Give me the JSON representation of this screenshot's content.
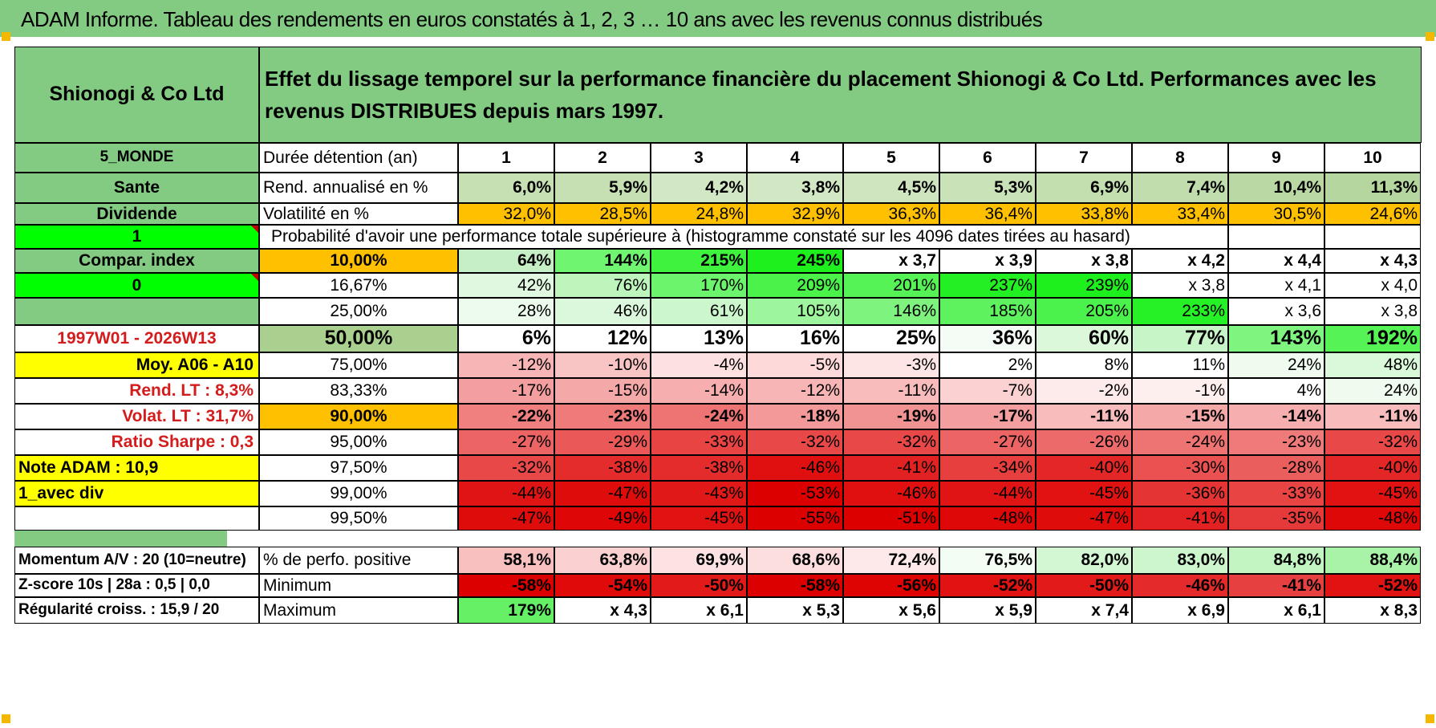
{
  "title": "ADAM Informe. Tableau des rendements en euros constatés à 1, 2, 3 … 10 ans avec les revenus connus distribués",
  "header": {
    "name": "Shionogi & Co Ltd",
    "description": "Effet du lissage temporel sur la performance financière du placement Shionogi & Co Ltd. Performances avec les revenus DISTRIBUES depuis mars 1997."
  },
  "colors": {
    "header_green": "#83cb83",
    "bright_green": "#00ff00",
    "orange": "#ffc000",
    "yellow": "#ffff00",
    "red_text": "#d41c1c"
  },
  "sidebar": [
    {
      "text": "5_MONDE",
      "bg": "#83cb83",
      "align": "c",
      "color": "#000000",
      "bold": true,
      "size": 19
    },
    {
      "text": "Sante",
      "bg": "#83cb83",
      "align": "c",
      "color": "#000000",
      "bold": true
    },
    {
      "text": "Dividende",
      "bg": "#83cb83",
      "align": "c",
      "color": "#000000",
      "bold": true
    },
    {
      "text": "1",
      "bg": "#00ff00",
      "align": "c",
      "color": "#000000",
      "bold": true,
      "tri": true
    },
    {
      "text": "Compar. index",
      "bg": "#83cb83",
      "align": "c",
      "color": "#000000",
      "bold": true
    },
    {
      "text": "0",
      "bg": "#00ff00",
      "align": "c",
      "color": "#000000",
      "bold": true,
      "tri": true
    },
    {
      "text": "",
      "bg": "#83cb83",
      "align": "c",
      "color": "#000000",
      "bold": true
    },
    {
      "text": "1997W01 - 2026W13",
      "bg": "#ffffff",
      "align": "c",
      "color": "#d41c1c",
      "bold": true
    },
    {
      "text": "Moy. A06 - A10",
      "bg": "#ffff00",
      "align": "r",
      "color": "#000000",
      "bold": true
    },
    {
      "text": "Rend. LT :   8,3%",
      "bg": "#ffffff",
      "align": "r",
      "color": "#d41c1c",
      "bold": true
    },
    {
      "text": "Volat. LT :   31,7%",
      "bg": "#ffffff",
      "align": "r",
      "color": "#d41c1c",
      "bold": true
    },
    {
      "text": "Ratio Sharpe :    0,3",
      "bg": "#ffffff",
      "align": "r",
      "color": "#d41c1c",
      "bold": true
    },
    {
      "text": "Note ADAM : 10,9",
      "bg": "#ffff00",
      "align": "l",
      "color": "#000000",
      "bold": true
    },
    {
      "text": "1_avec div",
      "bg": "#ffff00",
      "align": "l",
      "color": "#000000",
      "bold": true
    },
    {
      "text": "",
      "bg": "#ffffff",
      "align": "c",
      "color": "#000000",
      "bold": false
    }
  ],
  "label_rows": [
    {
      "text": "Durée détention (an)",
      "bg": "#ffffff"
    },
    {
      "text": "Rend. annualisé en %",
      "bg": "#ffffff"
    },
    {
      "text": "Volatilité en %",
      "bg": "#ffffff"
    }
  ],
  "years": [
    "1",
    "2",
    "3",
    "4",
    "5",
    "6",
    "7",
    "8",
    "9",
    "10"
  ],
  "annualized_return": [
    {
      "v": "6,0%",
      "bg": "#c6e0b4"
    },
    {
      "v": "5,9%",
      "bg": "#c6e0b4"
    },
    {
      "v": "4,2%",
      "bg": "#d2e7c4"
    },
    {
      "v": "3,8%",
      "bg": "#d2e7c4"
    },
    {
      "v": "4,5%",
      "bg": "#cfe5c0"
    },
    {
      "v": "5,3%",
      "bg": "#c9e2b8"
    },
    {
      "v": "6,9%",
      "bg": "#c3deaf"
    },
    {
      "v": "7,4%",
      "bg": "#c1ddad"
    },
    {
      "v": "10,4%",
      "bg": "#b9d8a3"
    },
    {
      "v": "11,3%",
      "bg": "#b5d69e"
    }
  ],
  "volatility": [
    {
      "v": "32,0%",
      "bg": "#ffc000"
    },
    {
      "v": "28,5%",
      "bg": "#ffc000"
    },
    {
      "v": "24,8%",
      "bg": "#ffc000"
    },
    {
      "v": "32,9%",
      "bg": "#ffc000"
    },
    {
      "v": "36,3%",
      "bg": "#ffc000"
    },
    {
      "v": "36,4%",
      "bg": "#ffc000"
    },
    {
      "v": "33,8%",
      "bg": "#ffc000"
    },
    {
      "v": "33,4%",
      "bg": "#ffc000"
    },
    {
      "v": "30,5%",
      "bg": "#ffc000"
    },
    {
      "v": "24,6%",
      "bg": "#ffc000"
    }
  ],
  "probability_title": "Probabilité d'avoir une performance totale supérieure à (histogramme constaté sur les 4096 dates tirées au hasard)",
  "probability_rows": [
    {
      "label": "10,00%",
      "label_bg": "#ffc000",
      "big": false,
      "bold": true,
      "cells": [
        {
          "v": "64%",
          "bg": "#c6efc6"
        },
        {
          "v": "144%",
          "bg": "#6ff56f"
        },
        {
          "v": "215%",
          "bg": "#3ef23e"
        },
        {
          "v": "245%",
          "bg": "#1ef01e"
        },
        {
          "v": "x 3,7",
          "bg": "#ffffff"
        },
        {
          "v": "x 3,9",
          "bg": "#ffffff"
        },
        {
          "v": "x 3,8",
          "bg": "#ffffff"
        },
        {
          "v": "x 4,2",
          "bg": "#ffffff"
        },
        {
          "v": "x 4,4",
          "bg": "#ffffff"
        },
        {
          "v": "x 4,3",
          "bg": "#ffffff"
        }
      ]
    },
    {
      "label": "16,67%",
      "label_bg": "#ffffff",
      "big": false,
      "bold": false,
      "cells": [
        {
          "v": "42%",
          "bg": "#e0f7e0"
        },
        {
          "v": "76%",
          "bg": "#bdf5bd"
        },
        {
          "v": "170%",
          "bg": "#6cf56c"
        },
        {
          "v": "209%",
          "bg": "#4af24a"
        },
        {
          "v": "201%",
          "bg": "#55f355"
        },
        {
          "v": "237%",
          "bg": "#22f022"
        },
        {
          "v": "239%",
          "bg": "#1ef01e"
        },
        {
          "v": "x 3,8",
          "bg": "#ffffff"
        },
        {
          "v": "x 4,1",
          "bg": "#ffffff"
        },
        {
          "v": "x 4,0",
          "bg": "#ffffff"
        }
      ]
    },
    {
      "label": "25,00%",
      "label_bg": "#ffffff",
      "big": false,
      "bold": false,
      "cells": [
        {
          "v": "28%",
          "bg": "#ecfbec"
        },
        {
          "v": "46%",
          "bg": "#dcf8dc"
        },
        {
          "v": "61%",
          "bg": "#ccf6cc"
        },
        {
          "v": "105%",
          "bg": "#9df59d"
        },
        {
          "v": "146%",
          "bg": "#7ef47e"
        },
        {
          "v": "185%",
          "bg": "#5ef25e"
        },
        {
          "v": "205%",
          "bg": "#4cf24c"
        },
        {
          "v": "233%",
          "bg": "#26f026"
        },
        {
          "v": "x 3,6",
          "bg": "#ffffff"
        },
        {
          "v": "x 3,8",
          "bg": "#ffffff"
        }
      ]
    },
    {
      "label": "50,00%",
      "label_bg": "#a9d08e",
      "big": true,
      "bold": true,
      "cells": [
        {
          "v": "6%",
          "bg": "#ffffff"
        },
        {
          "v": "12%",
          "bg": "#ffffff"
        },
        {
          "v": "13%",
          "bg": "#ffffff"
        },
        {
          "v": "16%",
          "bg": "#ffffff"
        },
        {
          "v": "25%",
          "bg": "#ffffff"
        },
        {
          "v": "36%",
          "bg": "#f5fcf5"
        },
        {
          "v": "60%",
          "bg": "#dbf8db"
        },
        {
          "v": "77%",
          "bg": "#c7f5c7"
        },
        {
          "v": "143%",
          "bg": "#7ff47f"
        },
        {
          "v": "192%",
          "bg": "#55f355"
        }
      ]
    },
    {
      "label": "75,00%",
      "label_bg": "#ffffff",
      "big": false,
      "bold": false,
      "cells": [
        {
          "v": "-12%",
          "bg": "#f7b5b5"
        },
        {
          "v": "-10%",
          "bg": "#f9c4c4"
        },
        {
          "v": "-4%",
          "bg": "#fde1e1"
        },
        {
          "v": "-5%",
          "bg": "#fdd9d9"
        },
        {
          "v": "-3%",
          "bg": "#fde5e5"
        },
        {
          "v": "2%",
          "bg": "#ffffff"
        },
        {
          "v": "8%",
          "bg": "#ffffff"
        },
        {
          "v": "11%",
          "bg": "#ffffff"
        },
        {
          "v": "24%",
          "bg": "#eefbee"
        },
        {
          "v": "48%",
          "bg": "#daf8da"
        }
      ]
    },
    {
      "label": "83,33%",
      "label_bg": "#ffffff",
      "big": false,
      "bold": false,
      "cells": [
        {
          "v": "-17%",
          "bg": "#f49f9f"
        },
        {
          "v": "-15%",
          "bg": "#f5a8a8"
        },
        {
          "v": "-14%",
          "bg": "#f6aeae"
        },
        {
          "v": "-12%",
          "bg": "#f7b5b5"
        },
        {
          "v": "-11%",
          "bg": "#f8bcbc"
        },
        {
          "v": "-7%",
          "bg": "#fbd1d1"
        },
        {
          "v": "-2%",
          "bg": "#fdeaea"
        },
        {
          "v": "-1%",
          "bg": "#feefef"
        },
        {
          "v": "4%",
          "bg": "#ffffff"
        },
        {
          "v": "24%",
          "bg": "#eefbee"
        }
      ]
    },
    {
      "label": "90,00%",
      "label_bg": "#ffc000",
      "big": false,
      "bold": true,
      "cells": [
        {
          "v": "-22%",
          "bg": "#f08080"
        },
        {
          "v": "-23%",
          "bg": "#ef7a7a"
        },
        {
          "v": "-24%",
          "bg": "#ee7474"
        },
        {
          "v": "-18%",
          "bg": "#f39999"
        },
        {
          "v": "-19%",
          "bg": "#f29393"
        },
        {
          "v": "-17%",
          "bg": "#f49f9f"
        },
        {
          "v": "-11%",
          "bg": "#f8bcbc"
        },
        {
          "v": "-15%",
          "bg": "#f5a8a8"
        },
        {
          "v": "-14%",
          "bg": "#f6aeae"
        },
        {
          "v": "-11%",
          "bg": "#f8bcbc"
        }
      ]
    },
    {
      "label": "95,00%",
      "label_bg": "#ffffff",
      "big": false,
      "bold": false,
      "cells": [
        {
          "v": "-27%",
          "bg": "#ec6464"
        },
        {
          "v": "-29%",
          "bg": "#eb5858"
        },
        {
          "v": "-33%",
          "bg": "#e84444"
        },
        {
          "v": "-32%",
          "bg": "#e84848"
        },
        {
          "v": "-32%",
          "bg": "#e84848"
        },
        {
          "v": "-27%",
          "bg": "#ec6464"
        },
        {
          "v": "-26%",
          "bg": "#ed6a6a"
        },
        {
          "v": "-24%",
          "bg": "#ee7474"
        },
        {
          "v": "-23%",
          "bg": "#ef7a7a"
        },
        {
          "v": "-32%",
          "bg": "#e84848"
        }
      ]
    },
    {
      "label": "97,50%",
      "label_bg": "#ffffff",
      "big": false,
      "bold": false,
      "cells": [
        {
          "v": "-32%",
          "bg": "#e84848"
        },
        {
          "v": "-38%",
          "bg": "#e42c2c"
        },
        {
          "v": "-38%",
          "bg": "#e42c2c"
        },
        {
          "v": "-46%",
          "bg": "#e01010"
        },
        {
          "v": "-41%",
          "bg": "#e22222"
        },
        {
          "v": "-34%",
          "bg": "#e73e3e"
        },
        {
          "v": "-40%",
          "bg": "#e32626"
        },
        {
          "v": "-30%",
          "bg": "#ea5252"
        },
        {
          "v": "-28%",
          "bg": "#eb5e5e"
        },
        {
          "v": "-40%",
          "bg": "#e32626"
        }
      ]
    },
    {
      "label": "99,00%",
      "label_bg": "#ffffff",
      "big": false,
      "bold": false,
      "cells": [
        {
          "v": "-44%",
          "bg": "#e01414"
        },
        {
          "v": "-47%",
          "bg": "#df0c0c"
        },
        {
          "v": "-43%",
          "bg": "#e01818"
        },
        {
          "v": "-53%",
          "bg": "#dd0000"
        },
        {
          "v": "-46%",
          "bg": "#e01010"
        },
        {
          "v": "-44%",
          "bg": "#e01414"
        },
        {
          "v": "-45%",
          "bg": "#e01212"
        },
        {
          "v": "-36%",
          "bg": "#e53434"
        },
        {
          "v": "-33%",
          "bg": "#e84444"
        },
        {
          "v": "-45%",
          "bg": "#e01212"
        }
      ]
    },
    {
      "label": "99,50%",
      "label_bg": "#ffffff",
      "big": false,
      "bold": false,
      "cells": [
        {
          "v": "-47%",
          "bg": "#df0c0c"
        },
        {
          "v": "-49%",
          "bg": "#de0606"
        },
        {
          "v": "-45%",
          "bg": "#e01212"
        },
        {
          "v": "-55%",
          "bg": "#dd0000"
        },
        {
          "v": "-51%",
          "bg": "#dd0000"
        },
        {
          "v": "-48%",
          "bg": "#de0808"
        },
        {
          "v": "-47%",
          "bg": "#df0c0c"
        },
        {
          "v": "-41%",
          "bg": "#e22222"
        },
        {
          "v": "-35%",
          "bg": "#e63a3a"
        },
        {
          "v": "-48%",
          "bg": "#de0808"
        }
      ]
    }
  ],
  "footer_left": [
    "Momentum A/V : 20 (10=neutre)",
    "Z-score 10s | 28a : 0,5 | 0,0",
    "Régularité croiss. : 15,9 / 20"
  ],
  "footer_rows": [
    {
      "label": "% de perfo. positive",
      "cells": [
        {
          "v": "58,1%",
          "bg": "#f9c0c0"
        },
        {
          "v": "63,8%",
          "bg": "#fad0d0"
        },
        {
          "v": "69,9%",
          "bg": "#fce2e2"
        },
        {
          "v": "68,6%",
          "bg": "#fcdede"
        },
        {
          "v": "72,4%",
          "bg": "#fde9e9"
        },
        {
          "v": "76,5%",
          "bg": "#f4fdf4"
        },
        {
          "v": "82,0%",
          "bg": "#d3f7d3"
        },
        {
          "v": "83,0%",
          "bg": "#cdf6cd"
        },
        {
          "v": "84,8%",
          "bg": "#c2f5c2"
        },
        {
          "v": "88,4%",
          "bg": "#a8f3a8"
        }
      ]
    },
    {
      "label": "Minimum",
      "cells": [
        {
          "v": "-58%",
          "bg": "#dd0000"
        },
        {
          "v": "-54%",
          "bg": "#e00a0a"
        },
        {
          "v": "-50%",
          "bg": "#e21a1a"
        },
        {
          "v": "-58%",
          "bg": "#dd0000"
        },
        {
          "v": "-56%",
          "bg": "#de0404"
        },
        {
          "v": "-52%",
          "bg": "#e11212"
        },
        {
          "v": "-50%",
          "bg": "#e21a1a"
        },
        {
          "v": "-46%",
          "bg": "#e42a2a"
        },
        {
          "v": "-41%",
          "bg": "#e74040"
        },
        {
          "v": "-52%",
          "bg": "#e11212"
        }
      ]
    },
    {
      "label": "Maximum",
      "cells": [
        {
          "v": "179%",
          "bg": "#66f066"
        },
        {
          "v": "x 4,3",
          "bg": "#ffffff"
        },
        {
          "v": "x 6,1",
          "bg": "#ffffff"
        },
        {
          "v": "x 5,3",
          "bg": "#ffffff"
        },
        {
          "v": "x 5,6",
          "bg": "#ffffff"
        },
        {
          "v": "x 5,9",
          "bg": "#ffffff"
        },
        {
          "v": "x 7,4",
          "bg": "#ffffff"
        },
        {
          "v": "x 6,9",
          "bg": "#ffffff"
        },
        {
          "v": "x 6,1",
          "bg": "#ffffff"
        },
        {
          "v": "x 8,3",
          "bg": "#ffffff"
        }
      ]
    }
  ]
}
